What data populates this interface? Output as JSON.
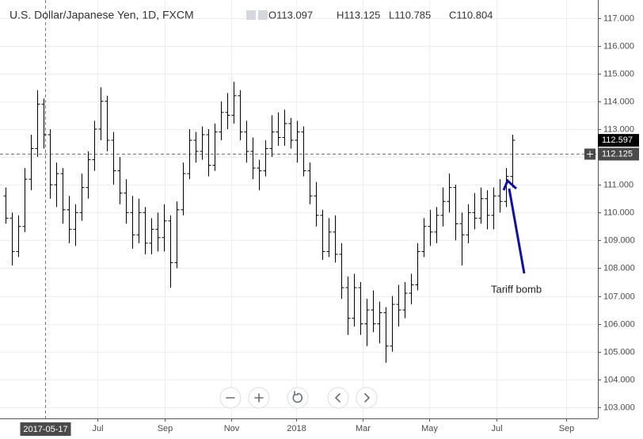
{
  "chart_data": {
    "type": "ohlc",
    "title": "U.S. Dollar/Japanese Yen, 1D, FXCM",
    "header_values": [
      "O113.097",
      "H113.125",
      "L110.785",
      "C110.804"
    ],
    "color": "#000000",
    "open": [
      110.6,
      109.8,
      108.6,
      109.5,
      111.2,
      112.3,
      113.9,
      112.8,
      111.0,
      111.4,
      110.1,
      109.4,
      110.0,
      110.9,
      111.9,
      113.0,
      114.0,
      112.6,
      111.5,
      110.7,
      110.0,
      109.2,
      110.0,
      108.9,
      109.4,
      109.1,
      109.7,
      108.2,
      110.1,
      111.4,
      112.6,
      112.2,
      112.8,
      111.7,
      112.9,
      113.6,
      113.5,
      114.2,
      112.9,
      112.2,
      111.6,
      111.5,
      112.3,
      112.9,
      112.7,
      113.2,
      112.6,
      112.9,
      111.5,
      110.6,
      109.9,
      108.6,
      109.3,
      108.5,
      107.3,
      106.2,
      107.3,
      106.0,
      106.5,
      106.0,
      106.4,
      105.2,
      106.7,
      106.5,
      107.1,
      107.4,
      108.6,
      109.5,
      109.3,
      109.9,
      110.4,
      110.9,
      109.6,
      109.2,
      110.0,
      109.8,
      110.5,
      109.9,
      110.6,
      110.4,
      111.3
    ],
    "high": [
      110.9,
      110.0,
      109.9,
      111.6,
      112.8,
      114.4,
      114.1,
      113.0,
      111.8,
      111.6,
      110.6,
      110.3,
      111.4,
      112.2,
      113.3,
      114.5,
      114.2,
      112.9,
      112.0,
      111.2,
      110.6,
      110.5,
      110.2,
      109.8,
      110.0,
      110.3,
      109.9,
      110.4,
      111.8,
      113.0,
      112.9,
      113.1,
      113.0,
      113.2,
      114.0,
      114.3,
      114.7,
      114.4,
      113.3,
      112.7,
      111.9,
      112.6,
      113.5,
      113.6,
      113.7,
      113.4,
      113.3,
      113.1,
      111.8,
      111.1,
      110.1,
      109.8,
      109.9,
      108.9,
      107.7,
      107.8,
      107.5,
      106.9,
      107.2,
      106.8,
      106.6,
      107.0,
      107.4,
      107.5,
      107.8,
      108.9,
      109.8,
      110.1,
      110.2,
      110.9,
      111.4,
      111.0,
      110.0,
      110.3,
      110.7,
      110.9,
      110.8,
      110.9,
      111.2,
      111.6,
      112.8
    ],
    "low": [
      109.6,
      108.1,
      108.4,
      109.3,
      110.8,
      112.0,
      112.3,
      110.5,
      110.2,
      109.6,
      108.9,
      108.8,
      109.7,
      110.5,
      111.5,
      112.6,
      112.2,
      111.0,
      110.3,
      109.6,
      108.7,
      108.9,
      108.5,
      108.5,
      108.6,
      108.6,
      107.3,
      108.0,
      109.9,
      111.2,
      111.8,
      111.9,
      111.3,
      111.5,
      112.6,
      113.0,
      113.2,
      112.6,
      111.8,
      111.2,
      110.8,
      111.3,
      112.0,
      112.4,
      112.4,
      112.3,
      111.8,
      111.3,
      110.3,
      109.5,
      108.3,
      108.4,
      108.2,
      106.9,
      105.6,
      105.9,
      105.6,
      105.2,
      105.7,
      105.3,
      104.6,
      105.0,
      105.9,
      106.2,
      106.7,
      107.2,
      108.4,
      108.8,
      108.9,
      109.5,
      110.0,
      109.0,
      108.1,
      108.9,
      109.4,
      109.6,
      109.4,
      109.4,
      110.0,
      110.2,
      110.9
    ],
    "close": [
      109.8,
      108.6,
      109.5,
      111.2,
      112.3,
      113.9,
      112.8,
      111.0,
      111.4,
      110.1,
      109.4,
      110.0,
      110.9,
      111.9,
      113.0,
      114.0,
      112.6,
      111.5,
      110.7,
      110.0,
      109.2,
      110.0,
      108.9,
      109.4,
      109.1,
      109.7,
      108.2,
      110.1,
      111.4,
      112.6,
      112.2,
      112.8,
      111.7,
      112.9,
      113.6,
      113.5,
      114.2,
      112.9,
      112.2,
      111.6,
      111.5,
      112.3,
      112.9,
      112.7,
      113.2,
      112.6,
      112.9,
      111.5,
      110.6,
      109.9,
      108.6,
      109.3,
      108.5,
      107.3,
      106.2,
      107.3,
      106.0,
      106.5,
      106.0,
      106.4,
      105.2,
      106.7,
      106.5,
      107.1,
      107.4,
      108.6,
      109.5,
      109.3,
      109.9,
      110.4,
      110.9,
      109.6,
      109.2,
      110.0,
      109.8,
      110.5,
      109.9,
      110.6,
      110.4,
      111.3,
      112.6
    ],
    "xlim": [
      -0.875,
      93.5
    ],
    "ylim": [
      102.6,
      117.5
    ],
    "xticks": [
      {
        "value": 14.5,
        "label": "Jul"
      },
      {
        "value": 25.125,
        "label": "Sep"
      },
      {
        "value": 35.625,
        "label": "Nov"
      },
      {
        "value": 45.875,
        "label": "2018"
      },
      {
        "value": 56.375,
        "label": "Mar"
      },
      {
        "value": 66.875,
        "label": "May"
      },
      {
        "value": 77.5,
        "label": "Jul"
      },
      {
        "value": 88.5,
        "label": "Sep"
      }
    ],
    "yticks": [
      {
        "value": 103,
        "label": "103.000"
      },
      {
        "value": 104,
        "label": "104.000"
      },
      {
        "value": 105,
        "label": "105.000"
      },
      {
        "value": 106,
        "label": "106.000"
      },
      {
        "value": 107,
        "label": "107.000"
      },
      {
        "value": 108,
        "label": "108.000"
      },
      {
        "value": 109,
        "label": "109.000"
      },
      {
        "value": 110,
        "label": "110.000"
      },
      {
        "value": 111,
        "label": "111.000"
      },
      {
        "value": 112,
        "label": "112.000"
      },
      {
        "value": 113,
        "label": "113.000"
      },
      {
        "value": 114,
        "label": "114.000"
      },
      {
        "value": 115,
        "label": "115.000"
      },
      {
        "value": 116,
        "label": "116.000"
      },
      {
        "value": 117,
        "label": "117.000"
      }
    ],
    "grid": true,
    "crosshair": {
      "x": {
        "value": 6.25,
        "label": "2017-05-17"
      },
      "y": {
        "value": 112.125,
        "label": "112.125"
      }
    },
    "last_price": {
      "value": 112.597,
      "label": "112.597"
    },
    "annotation": "Tariff bomb"
  }
}
